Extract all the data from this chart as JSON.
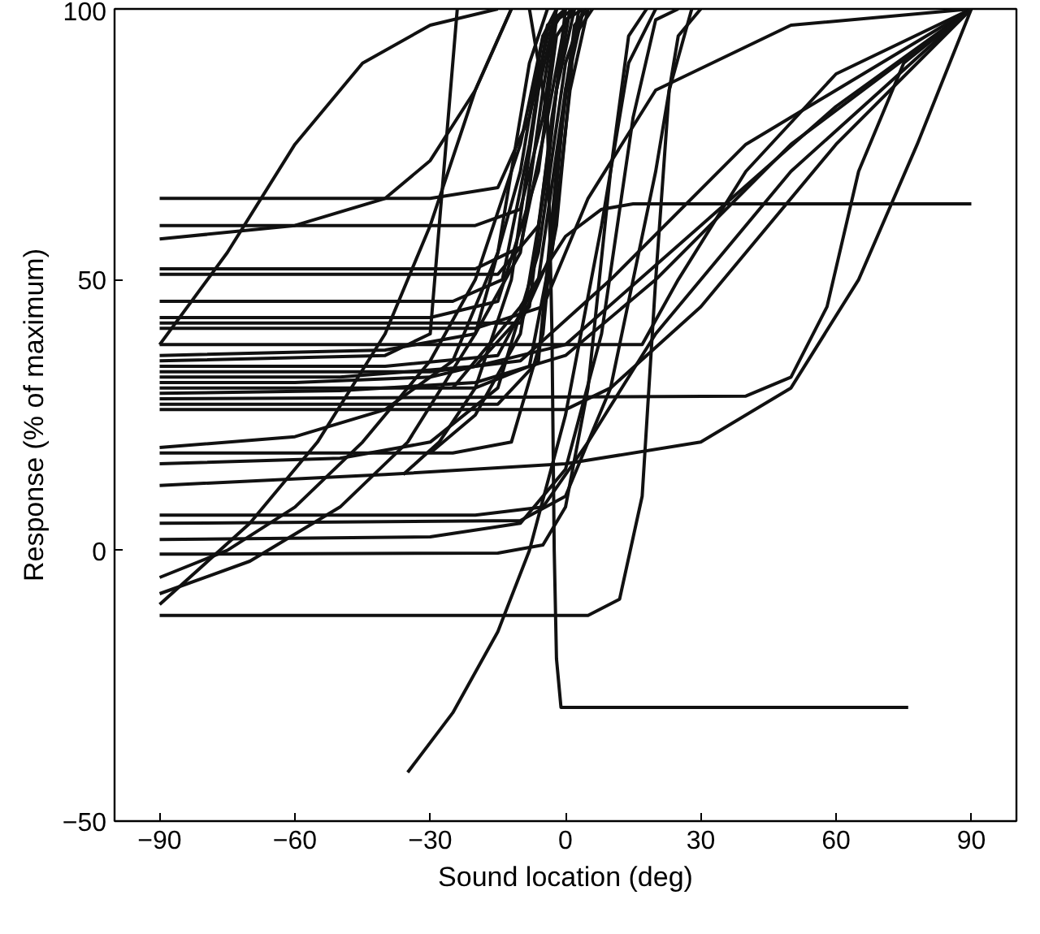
{
  "chart_data": {
    "type": "line",
    "xlabel": "Sound location (deg)",
    "ylabel": "Response (% of maximum)",
    "xlim": [
      -100,
      100
    ],
    "ylim": [
      -50,
      100
    ],
    "xticks": [
      -90,
      -60,
      -30,
      0,
      30,
      60,
      90
    ],
    "yticks": [
      -50,
      0,
      50,
      100
    ],
    "grid": false,
    "line_style": "solid",
    "series": [
      {
        "color": "#111111",
        "x": [
          -90,
          -30,
          -15,
          -8,
          -4,
          0
        ],
        "values": [
          65,
          65,
          67,
          80,
          95,
          100
        ]
      },
      {
        "color": "#111111",
        "x": [
          -90,
          -20,
          -10,
          -5,
          -2,
          2
        ],
        "values": [
          60,
          60,
          63,
          80,
          98,
          100
        ]
      },
      {
        "color": "#111111",
        "x": [
          -90,
          -60,
          -40,
          -30,
          -20,
          -12
        ],
        "values": [
          57.5,
          60,
          65,
          72,
          85,
          100
        ]
      },
      {
        "color": "#111111",
        "x": [
          -90,
          -20,
          -10,
          -4,
          0,
          4
        ],
        "values": [
          52,
          52,
          56,
          80,
          98,
          100
        ]
      },
      {
        "color": "#111111",
        "x": [
          -90,
          -15,
          -6,
          -2,
          2
        ],
        "values": [
          51,
          51,
          60,
          85,
          100
        ]
      },
      {
        "color": "#111111",
        "x": [
          -90,
          -25,
          -14,
          -8,
          -4,
          0
        ],
        "values": [
          46,
          46,
          50,
          75,
          97,
          100
        ]
      },
      {
        "color": "#111111",
        "x": [
          -90,
          -30,
          -15,
          -6,
          -2,
          2
        ],
        "values": [
          43,
          43,
          46,
          70,
          95,
          100
        ]
      },
      {
        "color": "#111111",
        "x": [
          -90,
          -10,
          -3,
          1,
          5
        ],
        "values": [
          42,
          42,
          55,
          85,
          100
        ]
      },
      {
        "color": "#111111",
        "x": [
          -90,
          -20,
          -5,
          5,
          20,
          50,
          90
        ],
        "values": [
          41,
          41,
          45,
          65,
          85,
          97,
          100
        ]
      },
      {
        "color": "#111111",
        "x": [
          -90,
          -75,
          -60,
          -45,
          -30,
          -15
        ],
        "values": [
          38,
          55,
          75,
          90,
          97,
          100
        ]
      },
      {
        "color": "#111111",
        "x": [
          -90,
          17,
          25,
          40,
          60,
          90
        ],
        "values": [
          38,
          38,
          50,
          70,
          88,
          100
        ]
      },
      {
        "color": "#111111",
        "x": [
          -90,
          -40,
          -20,
          -10,
          -5,
          -2
        ],
        "values": [
          36,
          37,
          40,
          55,
          85,
          100
        ]
      },
      {
        "color": "#111111",
        "x": [
          -90,
          -40,
          -30,
          -27,
          -24
        ],
        "values": [
          35,
          36,
          40,
          70,
          100
        ]
      },
      {
        "color": "#111111",
        "x": [
          -90,
          -40,
          -15,
          -6,
          0,
          4
        ],
        "values": [
          34,
          34,
          36,
          50,
          85,
          100
        ]
      },
      {
        "color": "#111111",
        "x": [
          -90,
          -30,
          -10,
          10,
          40,
          90
        ],
        "values": [
          33,
          33,
          35,
          50,
          75,
          100
        ]
      },
      {
        "color": "#111111",
        "x": [
          -90,
          -50,
          -20,
          -8,
          -3,
          1
        ],
        "values": [
          32,
          32,
          34,
          45,
          80,
          100
        ]
      },
      {
        "color": "#111111",
        "x": [
          -90,
          -60,
          -30,
          0,
          30,
          60,
          90
        ],
        "values": [
          31,
          31,
          32,
          38,
          60,
          82,
          100
        ]
      },
      {
        "color": "#111111",
        "x": [
          -90,
          -20,
          -8,
          -2,
          2,
          6
        ],
        "values": [
          30,
          30,
          34,
          60,
          95,
          100
        ]
      },
      {
        "color": "#111111",
        "x": [
          -90,
          -50,
          -20,
          0,
          20,
          50,
          90
        ],
        "values": [
          29,
          29.5,
          31,
          36,
          50,
          75,
          100
        ]
      },
      {
        "color": "#111111",
        "x": [
          -90,
          40,
          50,
          58,
          65,
          75,
          90
        ],
        "values": [
          28,
          28.5,
          32,
          45,
          70,
          90,
          100
        ]
      },
      {
        "color": "#111111",
        "x": [
          -90,
          -15,
          -6,
          -2,
          2,
          5
        ],
        "values": [
          27,
          27,
          35,
          70,
          97,
          100
        ]
      },
      {
        "color": "#111111",
        "x": [
          -90,
          0,
          10,
          30,
          60,
          90
        ],
        "values": [
          26,
          26,
          30,
          45,
          75,
          100
        ]
      },
      {
        "color": "#111111",
        "x": [
          -90,
          -60,
          -40,
          -25,
          -15,
          -8,
          -4
        ],
        "values": [
          19,
          21,
          26,
          35,
          55,
          90,
          100
        ]
      },
      {
        "color": "#111111",
        "x": [
          -90,
          -25,
          -12,
          -5,
          0,
          3
        ],
        "values": [
          18,
          18,
          20,
          40,
          85,
          100
        ]
      },
      {
        "color": "#111111",
        "x": [
          -90,
          -50,
          -30,
          -15,
          -6,
          0,
          4
        ],
        "values": [
          16,
          17,
          20,
          30,
          55,
          90,
          100
        ]
      },
      {
        "color": "#111111",
        "x": [
          -36,
          -28,
          -20,
          -12,
          -6,
          -2
        ],
        "values": [
          14,
          20,
          30,
          50,
          85,
          100
        ]
      },
      {
        "color": "#111111",
        "x": [
          -30,
          -20,
          -10,
          -4,
          0
        ],
        "values": [
          18,
          25,
          40,
          70,
          100
        ]
      },
      {
        "color": "#111111",
        "x": [
          -90,
          -40,
          0,
          30,
          50,
          65,
          78,
          90
        ],
        "values": [
          12,
          14,
          16,
          20,
          30,
          50,
          75,
          100
        ]
      },
      {
        "color": "#111111",
        "x": [
          -90,
          -20,
          -5,
          5,
          20,
          50,
          90
        ],
        "values": [
          6.5,
          6.5,
          8,
          20,
          40,
          70,
          100
        ]
      },
      {
        "color": "#111111",
        "x": [
          -90,
          -10,
          0,
          10,
          20,
          25,
          30
        ],
        "values": [
          5,
          5.5,
          10,
          30,
          70,
          95,
          100
        ]
      },
      {
        "color": "#111111",
        "x": [
          -90,
          -30,
          -10,
          0,
          8,
          15,
          20,
          25
        ],
        "values": [
          2,
          2.5,
          5,
          15,
          40,
          80,
          98,
          100
        ]
      },
      {
        "color": "#111111",
        "x": [
          -90,
          -15,
          -5,
          0,
          5,
          10,
          14,
          18
        ],
        "values": [
          -0.7,
          -0.5,
          1,
          8,
          30,
          70,
          95,
          100
        ]
      },
      {
        "color": "#111111",
        "x": [
          -90,
          5,
          12,
          17,
          20,
          23,
          28
        ],
        "values": [
          -12,
          -12,
          -9,
          10,
          50,
          85,
          100
        ]
      },
      {
        "color": "#111111",
        "x": [
          -90,
          -75,
          -60,
          -45,
          -30,
          -20,
          -10,
          -5,
          0
        ],
        "values": [
          -5,
          0,
          8,
          20,
          35,
          50,
          75,
          95,
          100
        ]
      },
      {
        "color": "#111111",
        "x": [
          -90,
          -70,
          -50,
          -35,
          -20,
          -10,
          -5,
          -2
        ],
        "values": [
          -8,
          -2,
          8,
          20,
          40,
          70,
          95,
          100
        ]
      },
      {
        "color": "#111111",
        "x": [
          -90,
          -70,
          -55,
          -40,
          -30,
          -20,
          -12
        ],
        "values": [
          -10,
          5,
          20,
          40,
          60,
          85,
          100
        ]
      },
      {
        "color": "#111111",
        "x": [
          -35,
          -25,
          -15,
          -8,
          0,
          8,
          14,
          20
        ],
        "values": [
          -41,
          -30,
          -15,
          0,
          25,
          60,
          90,
          100
        ]
      },
      {
        "color": "#111111",
        "x": [
          -8,
          -4,
          -3,
          -2.5,
          -2,
          -1,
          76
        ],
        "values": [
          100,
          80,
          40,
          0,
          -20,
          -29,
          -29
        ]
      },
      {
        "color": "#111111",
        "x": [
          -25,
          -10,
          0,
          8,
          15,
          90
        ],
        "values": [
          30,
          45,
          58,
          63,
          64,
          64
        ]
      }
    ]
  }
}
